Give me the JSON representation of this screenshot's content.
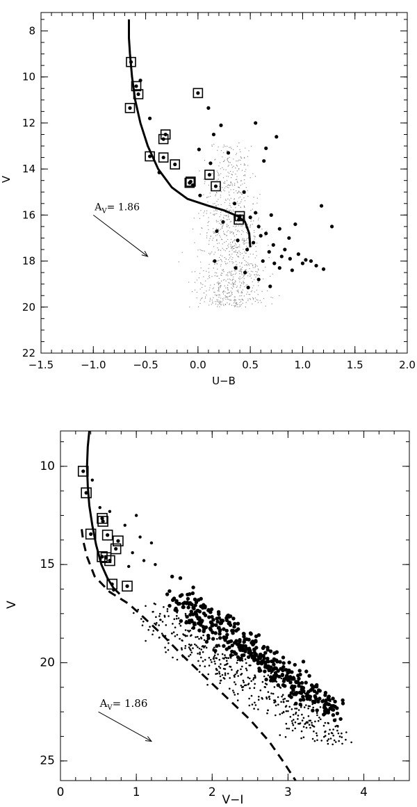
{
  "chart_data": [
    {
      "type": "scatter",
      "xlabel": "U−B",
      "ylabel": "V",
      "xlim": [
        -1.5,
        2.0
      ],
      "ylim": [
        22,
        7.2
      ],
      "y_inverted": true,
      "xticks": [
        -1.5,
        -1.0,
        -0.5,
        0.0,
        0.5,
        1.0,
        1.5,
        2.0
      ],
      "xticklabels": [
        "−1.5",
        "−1.0",
        "−0.5",
        "0.0",
        "0.5",
        "1.0",
        "1.5",
        "2.0"
      ],
      "yticks": [
        8,
        10,
        12,
        14,
        16,
        18,
        20,
        22
      ],
      "yticklabels": [
        "8",
        "10",
        "12",
        "14",
        "16",
        "18",
        "20",
        "22"
      ],
      "annotation": {
        "text": "A",
        "sub": "V",
        "value": "= 1.86",
        "vector_from": [
          -1.0,
          16.0
        ],
        "vector_to": [
          -0.48,
          17.8
        ]
      },
      "members_boxed": [
        [
          -0.64,
          9.35
        ],
        [
          -0.59,
          10.4
        ],
        [
          -0.57,
          10.75
        ],
        [
          -0.65,
          11.35
        ],
        [
          0.0,
          10.7
        ],
        [
          -0.31,
          12.5
        ],
        [
          -0.33,
          12.7
        ],
        [
          -0.46,
          13.45
        ],
        [
          -0.33,
          13.5
        ],
        [
          -0.22,
          13.8
        ],
        [
          -0.07,
          14.55
        ],
        [
          -0.08,
          14.6
        ],
        [
          0.11,
          14.25
        ],
        [
          0.17,
          14.75
        ],
        [
          0.4,
          16.05
        ],
        [
          0.39,
          16.2
        ]
      ],
      "stars_large": [
        [
          -0.55,
          10.15
        ],
        [
          -0.46,
          11.8
        ],
        [
          -0.37,
          14.15
        ],
        [
          -0.05,
          14.7
        ],
        [
          0.01,
          13.15
        ],
        [
          0.02,
          15.15
        ],
        [
          0.1,
          11.35
        ],
        [
          0.12,
          13.75
        ],
        [
          0.15,
          12.5
        ],
        [
          0.18,
          16.7
        ],
        [
          0.22,
          12.1
        ],
        [
          0.24,
          16.3
        ],
        [
          0.29,
          13.3
        ],
        [
          0.35,
          15.5
        ],
        [
          0.38,
          17.1
        ],
        [
          0.44,
          15.0
        ],
        [
          0.47,
          17.5
        ],
        [
          0.5,
          16.1
        ],
        [
          0.53,
          17.2
        ],
        [
          0.55,
          15.9
        ],
        [
          0.58,
          16.5
        ],
        [
          0.6,
          16.9
        ],
        [
          0.62,
          18.0
        ],
        [
          0.63,
          13.65
        ],
        [
          0.65,
          16.8
        ],
        [
          0.68,
          17.6
        ],
        [
          0.7,
          16.0
        ],
        [
          0.72,
          17.3
        ],
        [
          0.73,
          18.1
        ],
        [
          0.75,
          12.6
        ],
        [
          0.78,
          16.6
        ],
        [
          0.78,
          18.3
        ],
        [
          0.8,
          17.8
        ],
        [
          0.83,
          17.5
        ],
        [
          0.87,
          17.0
        ],
        [
          0.88,
          17.9
        ],
        [
          0.93,
          16.4
        ],
        [
          0.96,
          17.7
        ],
        [
          1.0,
          18.1
        ],
        [
          1.03,
          17.95
        ],
        [
          1.08,
          18.0
        ],
        [
          1.13,
          18.2
        ],
        [
          1.18,
          15.6
        ],
        [
          1.2,
          18.35
        ],
        [
          1.28,
          16.5
        ],
        [
          0.48,
          19.15
        ],
        [
          0.69,
          19.1
        ],
        [
          0.58,
          18.8
        ],
        [
          0.65,
          13.1
        ],
        [
          0.55,
          12.0
        ],
        [
          0.45,
          18.5
        ],
        [
          0.9,
          18.4
        ],
        [
          0.16,
          18.0
        ],
        [
          0.36,
          18.3
        ]
      ],
      "field_stars": {
        "count": 1000,
        "x_center": 0.32,
        "x_sigma": 0.25,
        "y_range": [
          12.8,
          20.0
        ],
        "y_peak": 17.4
      },
      "curves": [
        {
          "style": "solid",
          "points": [
            [
              -0.66,
              7.5
            ],
            [
              -0.66,
              8.3
            ],
            [
              -0.65,
              9.0
            ],
            [
              -0.63,
              10.0
            ],
            [
              -0.6,
              11.0
            ],
            [
              -0.55,
              12.0
            ],
            [
              -0.48,
              13.0
            ],
            [
              -0.38,
              14.0
            ],
            [
              -0.25,
              14.8
            ],
            [
              -0.1,
              15.3
            ],
            [
              0.1,
              15.6
            ],
            [
              0.25,
              15.8
            ],
            [
              0.38,
              16.05
            ],
            [
              0.45,
              16.3
            ],
            [
              0.49,
              16.8
            ],
            [
              0.5,
              17.4
            ]
          ]
        }
      ]
    },
    {
      "type": "scatter",
      "xlabel": "V−I",
      "ylabel": "V",
      "xlim": [
        0,
        4.6
      ],
      "ylim": [
        26,
        8.2
      ],
      "y_inverted": true,
      "xticks": [
        0,
        1,
        2,
        3,
        4
      ],
      "xticklabels": [
        "0",
        "1",
        "2",
        "3",
        "4"
      ],
      "yticks": [
        10,
        15,
        20,
        25
      ],
      "yticklabels": [
        "10",
        "15",
        "20",
        "25"
      ],
      "annotation": {
        "text": "A",
        "sub": "V",
        "value": "= 1.86",
        "vector_from": [
          0.5,
          22.5
        ],
        "vector_to": [
          1.2,
          24.0
        ]
      },
      "members_boxed": [
        [
          0.3,
          10.25
        ],
        [
          0.34,
          11.35
        ],
        [
          0.4,
          13.45
        ],
        [
          0.55,
          12.65
        ],
        [
          0.56,
          12.8
        ],
        [
          0.62,
          13.5
        ],
        [
          0.55,
          14.6
        ],
        [
          0.6,
          14.65
        ],
        [
          0.65,
          14.8
        ],
        [
          0.76,
          13.8
        ],
        [
          0.73,
          14.2
        ],
        [
          0.68,
          16.0
        ],
        [
          0.88,
          16.1
        ]
      ],
      "bright_extra": [
        [
          0.42,
          10.7
        ],
        [
          0.52,
          12.1
        ],
        [
          0.65,
          12.3
        ],
        [
          1.0,
          12.5
        ],
        [
          0.85,
          13.0
        ],
        [
          1.05,
          13.6
        ],
        [
          0.95,
          14.4
        ],
        [
          1.1,
          14.8
        ],
        [
          0.9,
          15.1
        ],
        [
          1.2,
          13.9
        ],
        [
          1.25,
          15.0
        ],
        [
          0.7,
          16.3
        ]
      ],
      "cloud_large": {
        "count": 420,
        "from": [
          1.5,
          16.6
        ],
        "to": [
          3.6,
          22.4
        ],
        "spread": 0.75
      },
      "cloud_small": {
        "count": 450,
        "from": [
          1.2,
          17.0
        ],
        "to": [
          3.7,
          23.6
        ],
        "spread": 0.75,
        "offset": 1.3
      },
      "curves": [
        {
          "style": "solid",
          "points": [
            [
              0.38,
              8.2
            ],
            [
              0.36,
              9.0
            ],
            [
              0.35,
              10.0
            ],
            [
              0.36,
              11.0
            ],
            [
              0.38,
              12.0
            ],
            [
              0.42,
              13.0
            ],
            [
              0.47,
              14.0
            ],
            [
              0.54,
              15.0
            ],
            [
              0.62,
              15.7
            ],
            [
              0.7,
              16.2
            ],
            [
              0.78,
              16.5
            ]
          ]
        },
        {
          "style": "dashed",
          "points": [
            [
              0.28,
              13.2
            ],
            [
              0.3,
              13.8
            ],
            [
              0.35,
              14.6
            ],
            [
              0.45,
              15.6
            ],
            [
              0.65,
              16.4
            ],
            [
              0.9,
              17.0
            ],
            [
              1.1,
              17.7
            ],
            [
              1.35,
              18.6
            ],
            [
              1.6,
              19.6
            ],
            [
              1.9,
              20.7
            ],
            [
              2.2,
              21.8
            ],
            [
              2.5,
              22.9
            ],
            [
              2.75,
              24.0
            ],
            [
              2.95,
              25.1
            ],
            [
              3.1,
              26.0
            ]
          ]
        }
      ]
    }
  ]
}
